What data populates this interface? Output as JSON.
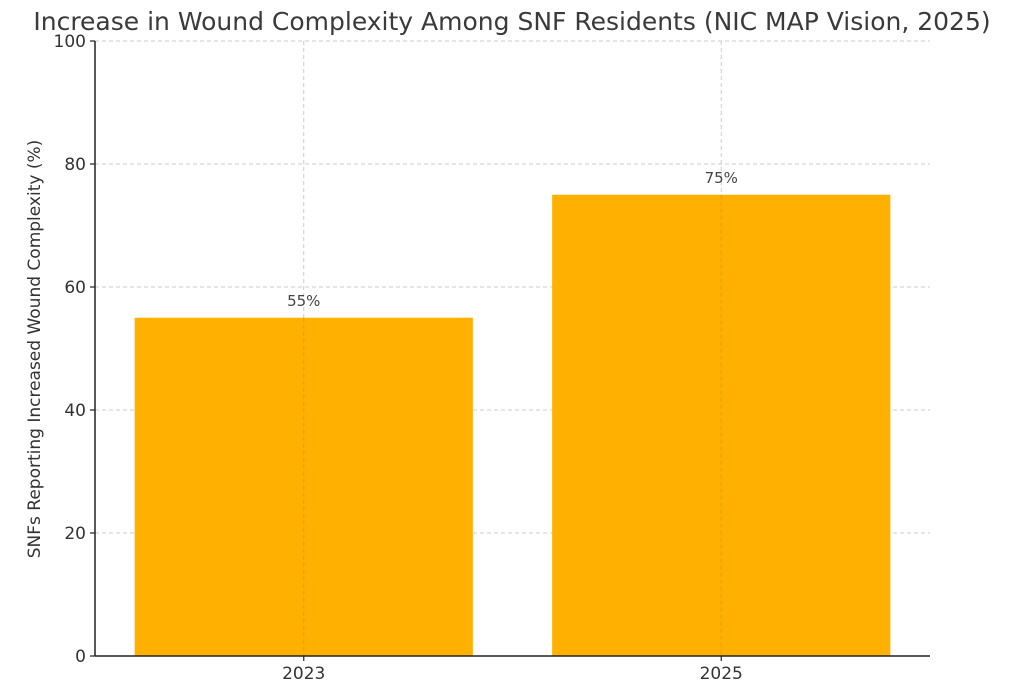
{
  "chart_data": {
    "type": "bar",
    "title": "Increase in Wound Complexity Among SNF Residents (NIC MAP Vision, 2025)",
    "xlabel": "",
    "ylabel": "SNFs Reporting Increased Wound Complexity (%)",
    "categories": [
      "2023",
      "2025"
    ],
    "values": [
      55,
      75
    ],
    "data_labels": [
      "55%",
      "75%"
    ],
    "ylim": [
      0,
      100
    ],
    "yticks": [
      0,
      20,
      40,
      60,
      80,
      100
    ],
    "grid": true,
    "bar_color": "#FFB000"
  }
}
